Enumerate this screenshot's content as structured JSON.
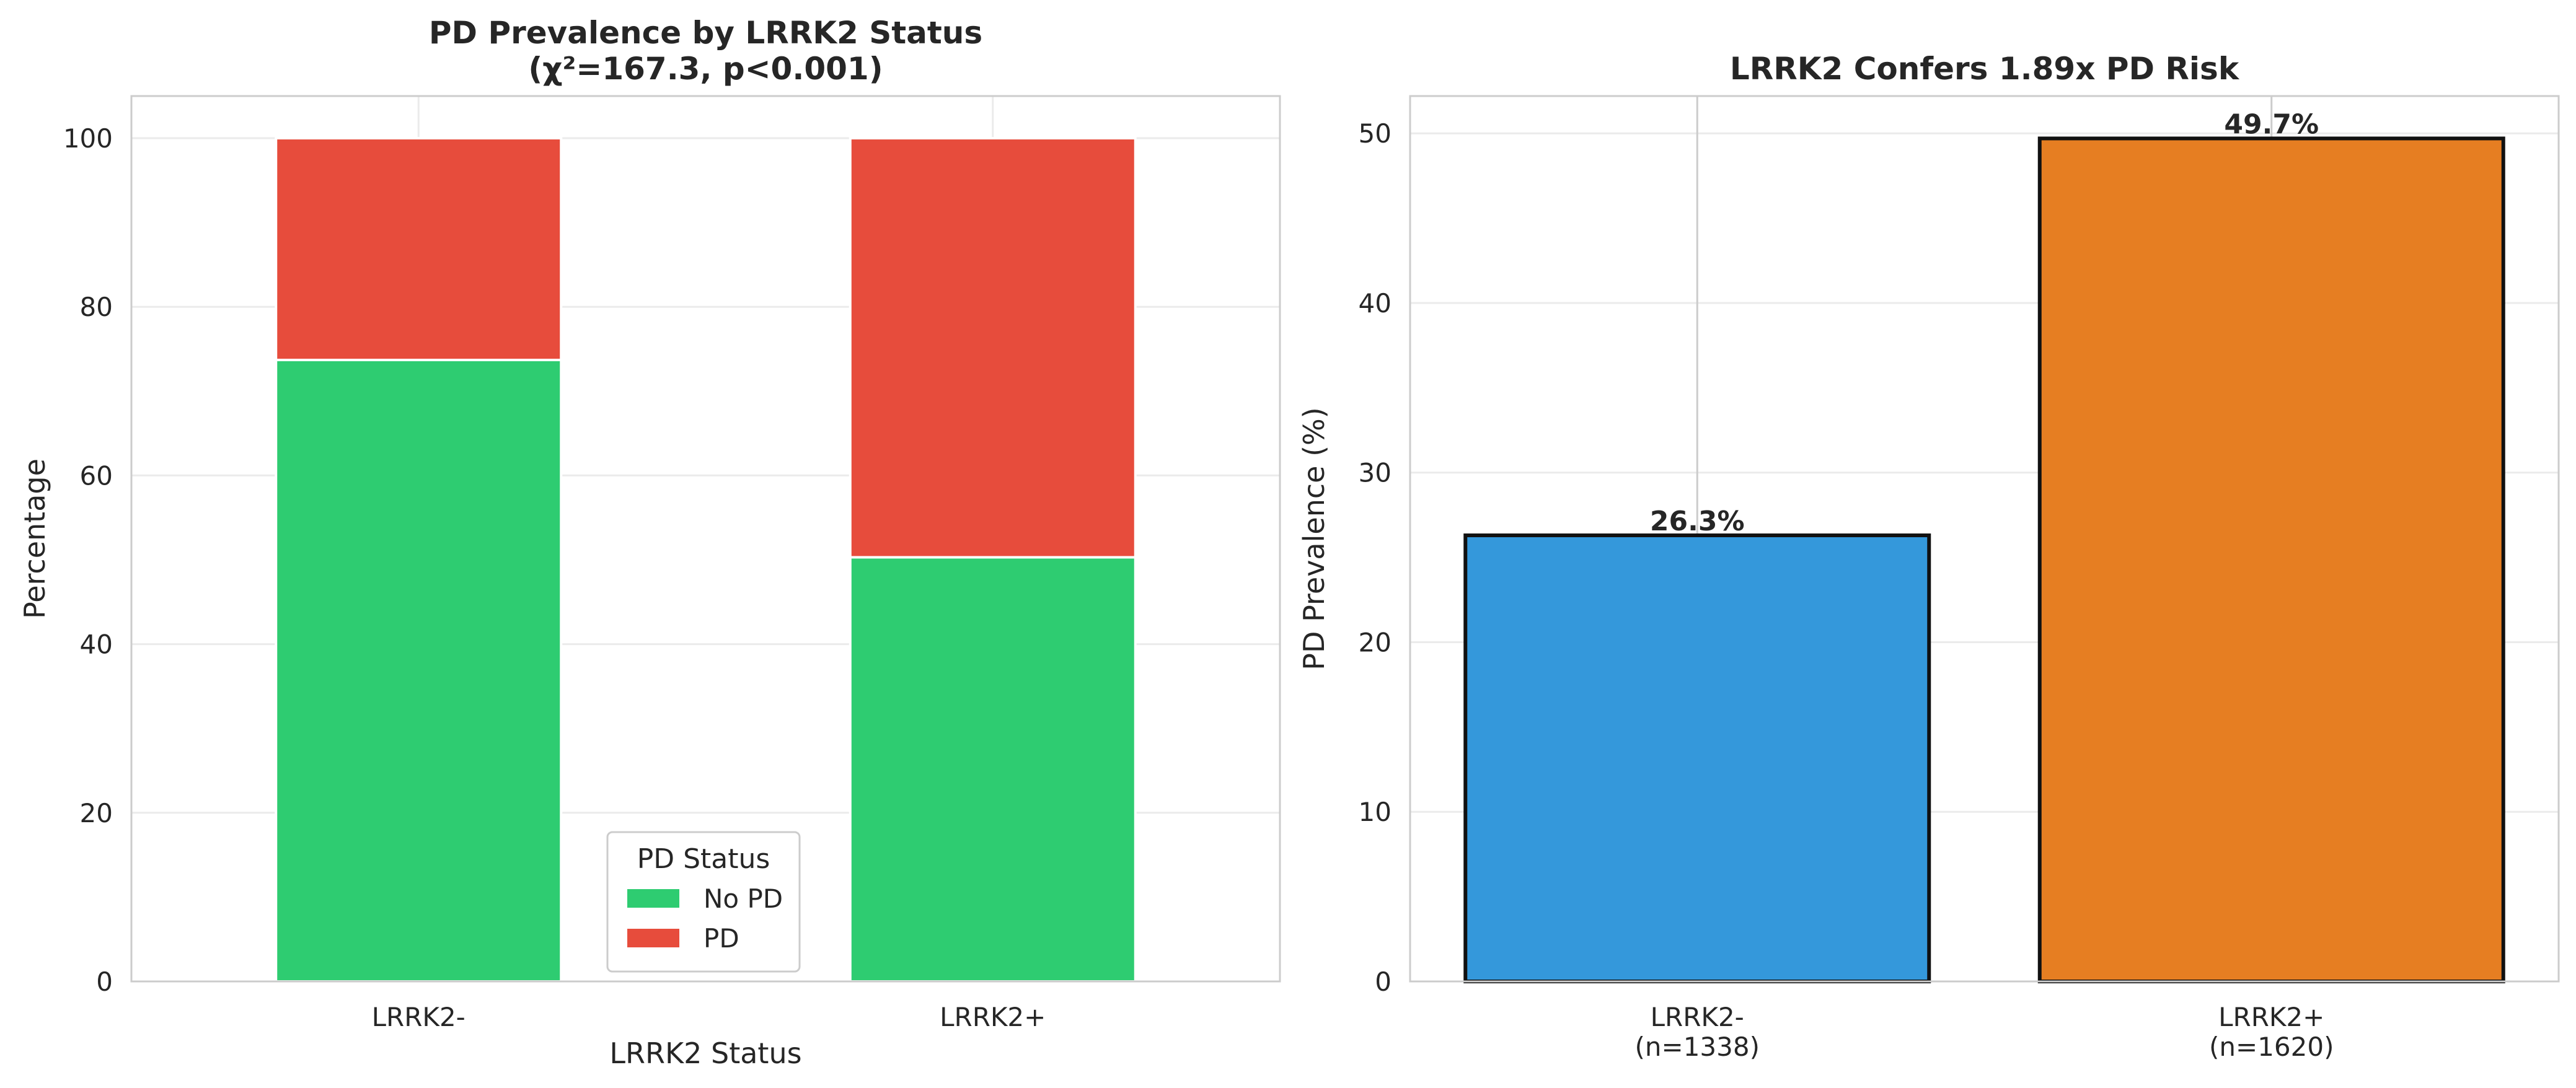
{
  "chart_data": [
    {
      "type": "bar",
      "stacked": true,
      "title_lines": [
        "PD Prevalence by LRRK2 Status",
        "(χ²=167.3, p<0.001)"
      ],
      "categories": [
        "LRRK2-",
        "LRRK2+"
      ],
      "series": [
        {
          "name": "No PD",
          "values": [
            73.7,
            50.3
          ],
          "color": "#2ecc71"
        },
        {
          "name": "PD",
          "values": [
            26.3,
            49.7
          ],
          "color": "#e74c3c"
        }
      ],
      "xlabel": "LRRK2 Status",
      "ylabel": "Percentage",
      "ylim": [
        0,
        105
      ],
      "yticks": [
        0,
        20,
        40,
        60,
        80,
        100
      ],
      "grid": true,
      "legend": {
        "title": "PD Status",
        "placement": "lower-center"
      }
    },
    {
      "type": "bar",
      "title": "LRRK2 Confers 1.89x PD Risk",
      "categories": [
        [
          "LRRK2-",
          "(n=1338)"
        ],
        [
          "LRRK2+",
          "(n=1620)"
        ]
      ],
      "values": [
        26.3,
        49.7
      ],
      "data_labels": [
        "26.3%",
        "49.7%"
      ],
      "colors": [
        "#3498db",
        "#e67e22"
      ],
      "xlabel": "",
      "ylabel": "PD Prevalence (%)",
      "ylim": [
        0,
        52.2
      ],
      "yticks": [
        0,
        10,
        20,
        30,
        40,
        50
      ],
      "grid": true
    }
  ]
}
